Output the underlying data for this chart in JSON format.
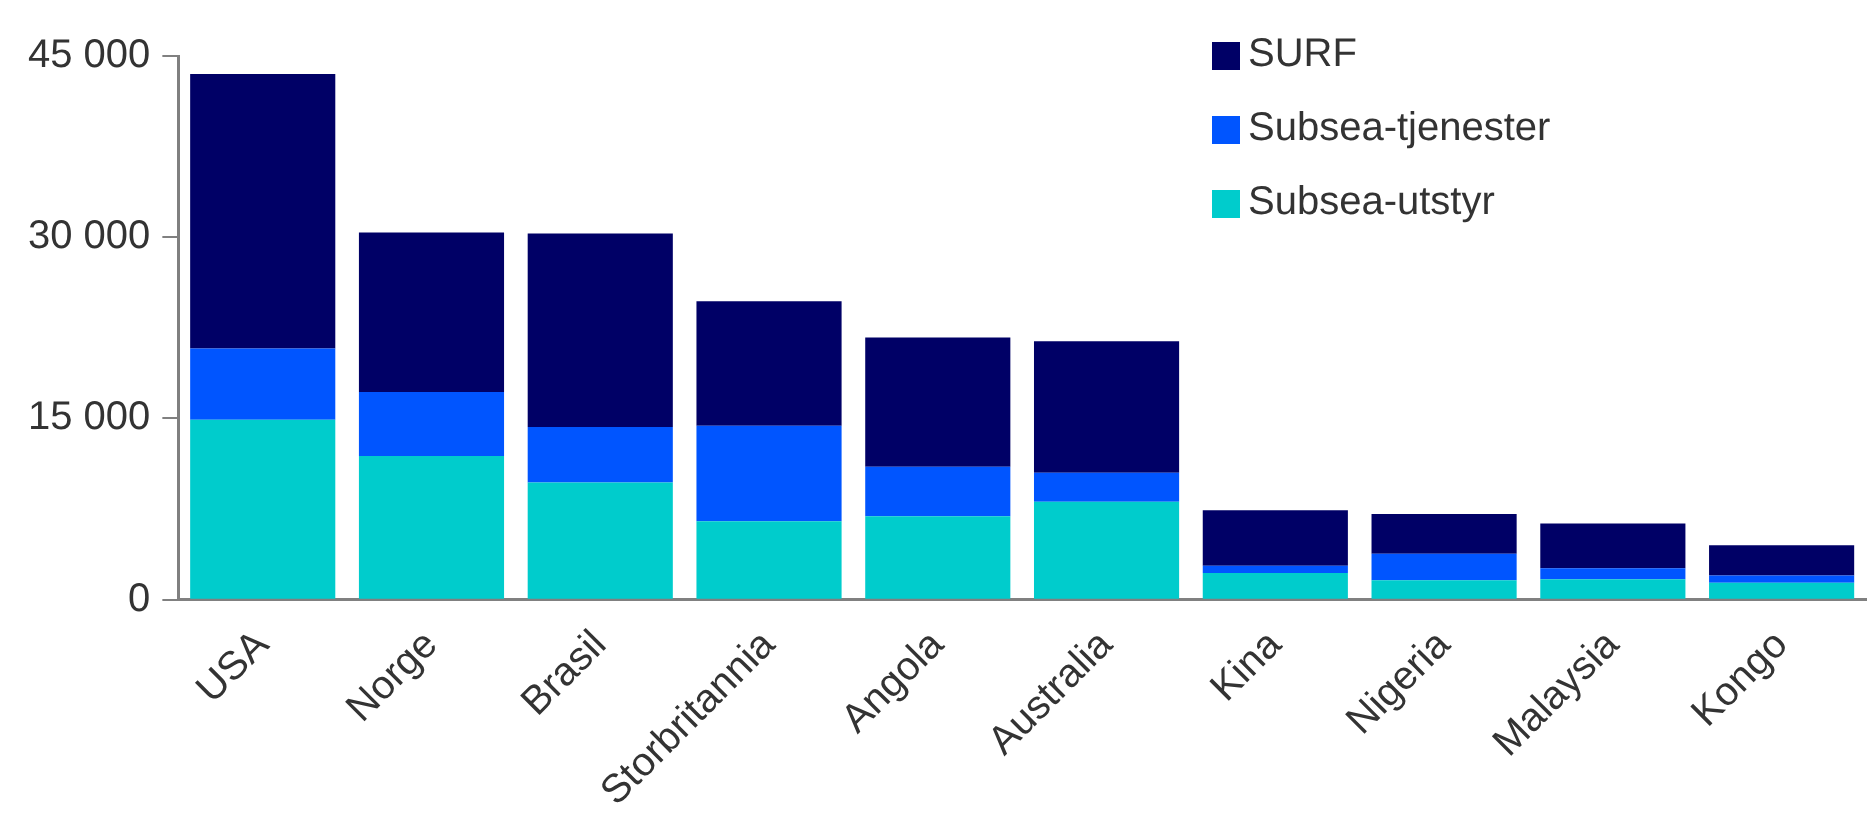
{
  "chart_data": {
    "type": "bar",
    "stacked": true,
    "categories": [
      "USA",
      "Norge",
      "Brasil",
      "Storbritannia",
      "Angola",
      "Australia",
      "Kina",
      "Nigeria",
      "Malaysia",
      "Kongo"
    ],
    "series": [
      {
        "name": "Subsea-utstyr",
        "color": "#00cccc",
        "values": [
          14900,
          11900,
          9700,
          6500,
          6900,
          8100,
          2200,
          1600,
          1700,
          1400
        ]
      },
      {
        "name": "Subsea-tjenester",
        "color": "#0055ff",
        "values": [
          5900,
          5300,
          4600,
          7900,
          4100,
          2400,
          600,
          2200,
          900,
          600
        ]
      },
      {
        "name": "SURF",
        "color": "#000066",
        "values": [
          22700,
          13200,
          16000,
          10300,
          10700,
          10900,
          4600,
          3300,
          3700,
          2500
        ]
      }
    ],
    "ylim": [
      0,
      45000
    ],
    "yticks": [
      {
        "value": 0,
        "label": "0"
      },
      {
        "value": 15000,
        "label": "15 000"
      },
      {
        "value": 30000,
        "label": "30 000"
      },
      {
        "value": 45000,
        "label": "45 000"
      }
    ],
    "grid": false,
    "legend": "top right"
  }
}
